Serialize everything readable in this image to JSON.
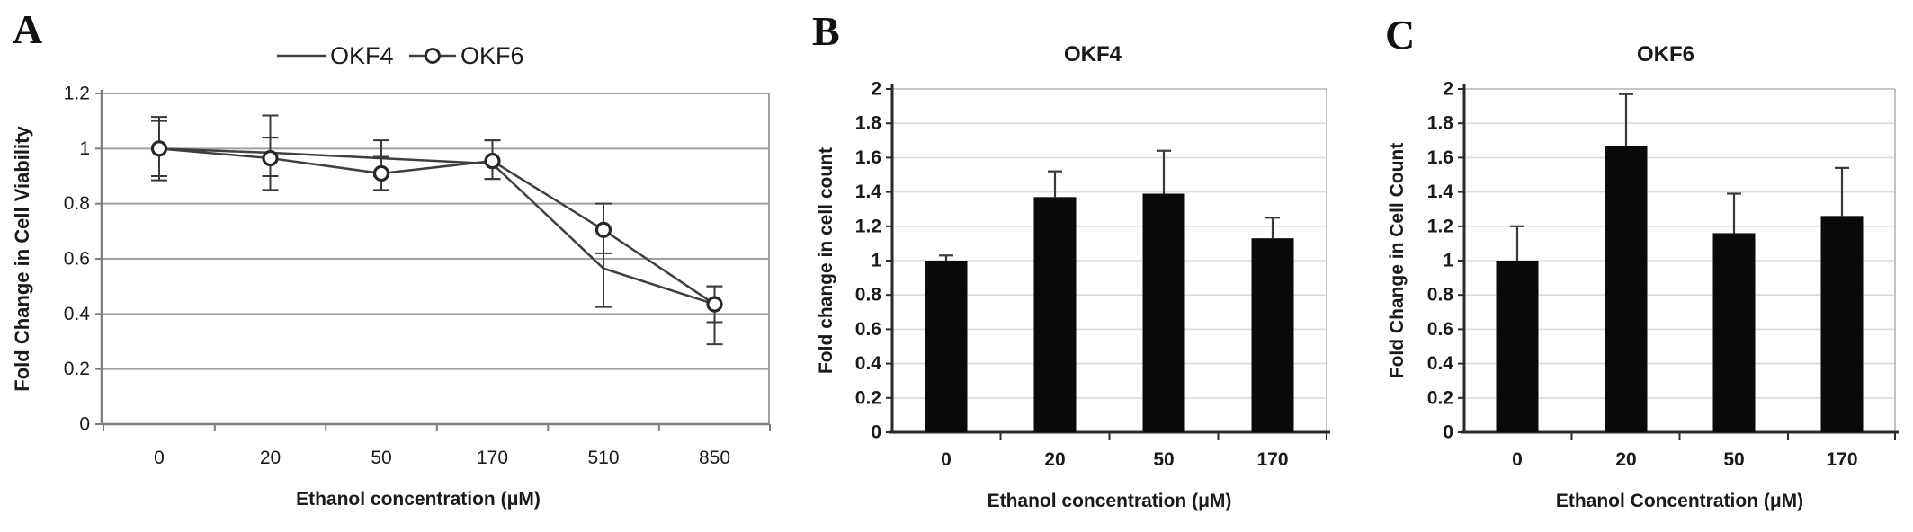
{
  "figure": {
    "background": "#ffffff",
    "colors": {
      "text": "#1a1a1a",
      "axis_line_a": "#7f7f7f",
      "grid_a": "#a0a0a0",
      "axis_bc": "#2a2a2a",
      "grid_bc": "#dcdcdc",
      "border_bc": "#b5b5b5",
      "series_line": "#3f3f3f",
      "marker_fill": "#ffffff",
      "marker_stroke": "#262626",
      "bar_fill": "#0a0a0a",
      "error_bar": "#3a3a3a"
    }
  },
  "chart_data": [
    {
      "panel_label": "A",
      "type": "line",
      "title": "",
      "categories": [
        "0",
        "20",
        "50",
        "170",
        "510",
        "850"
      ],
      "xlabel": "Ethanol concentration (μM)",
      "ylabel": "Fold Change in Cell Viability",
      "ylim": [
        0,
        1.2
      ],
      "ytick_labels": [
        "0",
        "0.2",
        "0.4",
        "0.6",
        "0.8",
        "1",
        "1.2"
      ],
      "grid": true,
      "legend_position": "top-center",
      "series": [
        {
          "name": "OKF4",
          "marker": "none",
          "values": [
            1.0,
            0.985,
            0.965,
            0.945,
            0.565,
            0.435
          ],
          "err_up": [
            0.115,
            0.135,
            0.065,
            0.085,
            0.14,
            0.065
          ],
          "err_down": [
            0.115,
            0.135,
            0.065,
            0.055,
            0.14,
            0.145
          ]
        },
        {
          "name": "OKF6",
          "marker": "circle",
          "values": [
            1.0,
            0.965,
            0.91,
            0.955,
            0.705,
            0.435
          ],
          "err_up": [
            0.1,
            0.075,
            0.06,
            0.075,
            0.095,
            0.065
          ],
          "err_down": [
            0.1,
            0.065,
            0.06,
            0.065,
            0.085,
            0.065
          ]
        }
      ]
    },
    {
      "panel_label": "B",
      "type": "bar",
      "title": "OKF4",
      "categories": [
        "0",
        "20",
        "50",
        "170"
      ],
      "xlabel": "Ethanol concentration (μM)",
      "ylabel": "Fold change in cell count",
      "ylim": [
        0,
        2
      ],
      "ytick_labels": [
        "0",
        "0.2",
        "0.4",
        "0.6",
        "0.8",
        "1",
        "1.2",
        "1.4",
        "1.6",
        "1.8",
        "2"
      ],
      "grid": true,
      "values": [
        1.0,
        1.37,
        1.39,
        1.13
      ],
      "err_up": [
        0.03,
        0.15,
        0.25,
        0.12
      ]
    },
    {
      "panel_label": "C",
      "type": "bar",
      "title": "OKF6",
      "categories": [
        "0",
        "20",
        "50",
        "170"
      ],
      "xlabel": "Ethanol Concentration (μM)",
      "ylabel": "Fold Change in Cell Count",
      "ylim": [
        0,
        2
      ],
      "ytick_labels": [
        "0",
        "0.2",
        "0.4",
        "0.6",
        "0.8",
        "1",
        "1.2",
        "1.4",
        "1.6",
        "1.8",
        "2"
      ],
      "grid": true,
      "values": [
        1.0,
        1.67,
        1.16,
        1.26
      ],
      "err_up": [
        0.2,
        0.3,
        0.23,
        0.28
      ]
    }
  ]
}
